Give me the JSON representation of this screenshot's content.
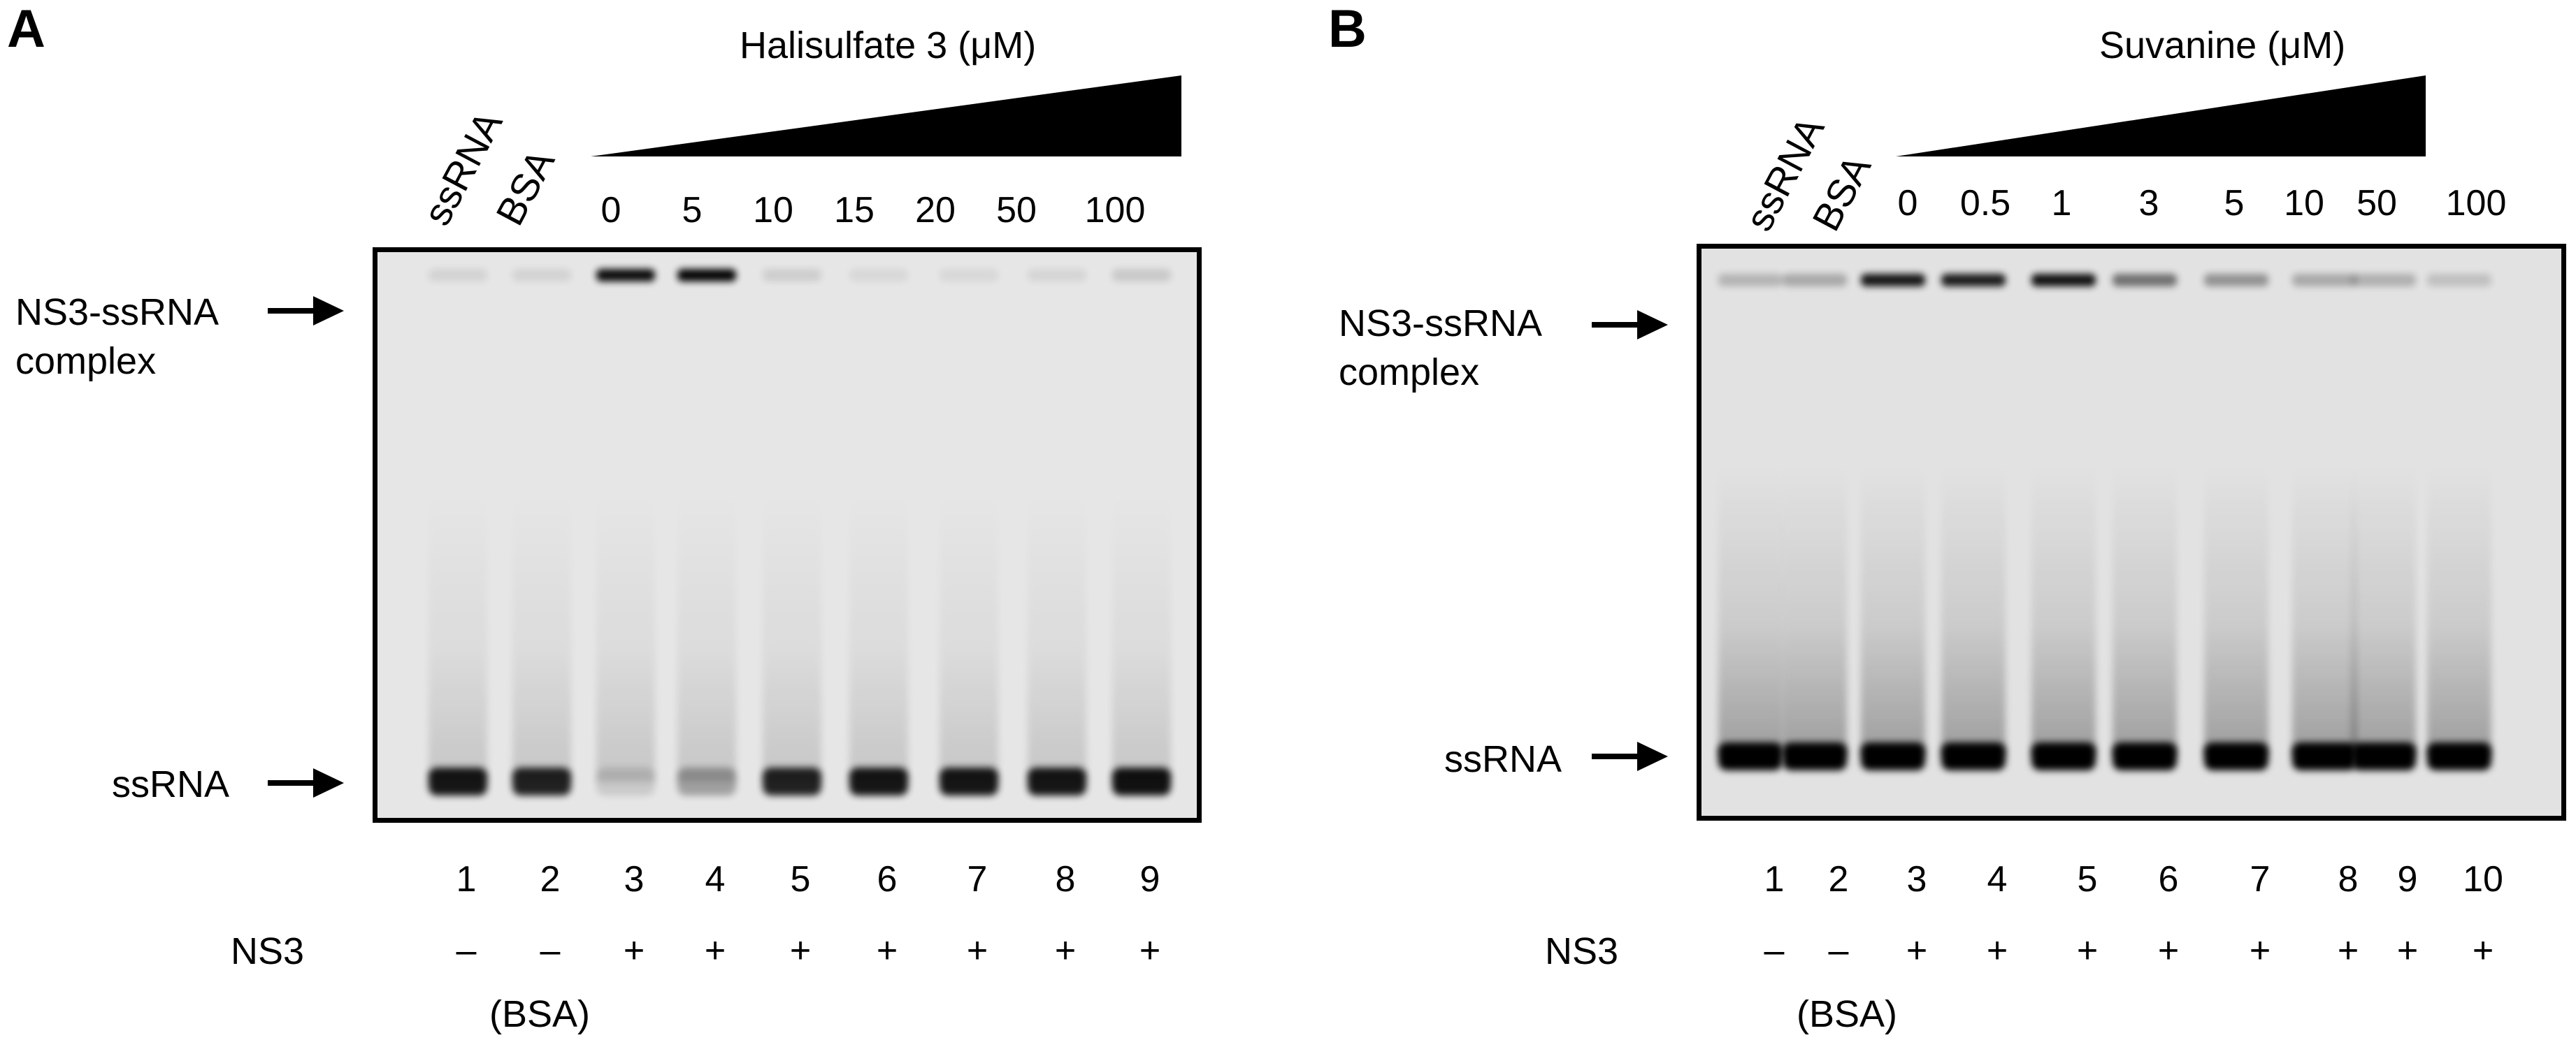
{
  "panels": [
    {
      "letter": "A",
      "compound_label": "Halisulfate 3 (μM)",
      "rotated_labels": [
        "ssRNA",
        "BSA"
      ],
      "concentrations": [
        "0",
        "5",
        "10",
        "15",
        "20",
        "50",
        "100"
      ],
      "complex_label_line1": "NS3-ssRNA",
      "complex_label_line2": "complex",
      "ssrna_label": "ssRNA",
      "lane_numbers": [
        "1",
        "2",
        "3",
        "4",
        "5",
        "6",
        "7",
        "8",
        "9"
      ],
      "ns3_label": "NS3",
      "ns3_signs": [
        "–",
        "–",
        "+",
        "+",
        "+",
        "+",
        "+",
        "+",
        "+"
      ],
      "bsa_note": "(BSA)",
      "complex_band_intensity": [
        0.08,
        0.08,
        0.95,
        0.98,
        0.1,
        0.06,
        0.06,
        0.07,
        0.12
      ],
      "ssrna_band_intensity": [
        0.9,
        0.85,
        0.12,
        0.3,
        0.85,
        0.9,
        0.9,
        0.9,
        0.92
      ]
    },
    {
      "letter": "B",
      "compound_label": "Suvanine (μM)",
      "rotated_labels": [
        "ssRNA",
        "BSA"
      ],
      "concentrations": [
        "0",
        "0.5",
        "1",
        "3",
        "5",
        "10",
        "50",
        "100"
      ],
      "complex_label_line1": "NS3-ssRNA",
      "complex_label_line2": "complex",
      "ssrna_label": "ssRNA",
      "lane_numbers": [
        "1",
        "2",
        "3",
        "4",
        "5",
        "6",
        "7",
        "8",
        "9",
        "10"
      ],
      "ns3_label": "NS3",
      "ns3_signs": [
        "–",
        "–",
        "+",
        "+",
        "+",
        "+",
        "+",
        "+",
        "+",
        "+"
      ],
      "bsa_note": "(BSA)",
      "complex_band_intensity": [
        0.2,
        0.25,
        0.9,
        0.88,
        0.92,
        0.5,
        0.35,
        0.25,
        0.22,
        0.15
      ],
      "ssrna_band_intensity": [
        1.0,
        1.0,
        1.0,
        1.0,
        1.0,
        1.0,
        1.0,
        1.0,
        1.0,
        1.0
      ]
    }
  ]
}
